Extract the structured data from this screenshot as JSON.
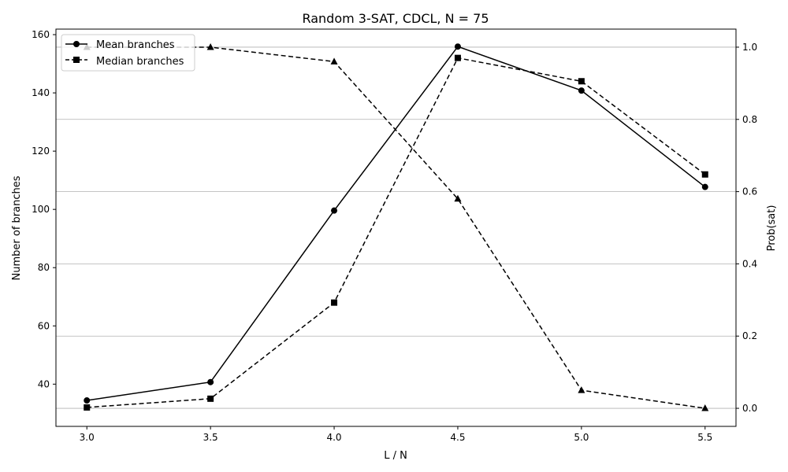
{
  "chart_data": {
    "type": "line",
    "title": "Random 3-SAT, CDCL, N = 75",
    "xlabel": "L / N",
    "ylabel_left": "Number of branches",
    "ylabel_right": "Prob(sat)",
    "x": [
      3.0,
      3.5,
      4.0,
      4.5,
      5.0,
      5.5
    ],
    "x_tick_labels": [
      "3.0",
      "3.5",
      "4.0",
      "4.5",
      "5.0",
      "5.5"
    ],
    "xlim": [
      2.875,
      5.625
    ],
    "ylim_left": [
      25.5,
      161.9
    ],
    "ylim_right": [
      -0.05,
      1.05
    ],
    "y_left_ticks": [
      40,
      60,
      80,
      100,
      120,
      140,
      160
    ],
    "y_right_ticks": [
      0.0,
      0.2,
      0.4,
      0.6,
      0.8,
      1.0
    ],
    "y_right_tick_labels": [
      "0.0",
      "0.2",
      "0.4",
      "0.6",
      "0.8",
      "1.0"
    ],
    "grid": "right-axis horizontal",
    "legend_location": "top-left",
    "series": [
      {
        "name": "Mean branches",
        "axis": "left",
        "marker": "circle",
        "linestyle": "solid",
        "color": "#000000",
        "values": [
          34.4,
          40.7,
          99.6,
          155.9,
          140.8,
          107.7
        ]
      },
      {
        "name": "Median branches",
        "axis": "left",
        "marker": "square",
        "linestyle": "dashed",
        "color": "#000000",
        "values": [
          32.0,
          35.0,
          68.0,
          152.0,
          144.0,
          112.0
        ]
      },
      {
        "name": "",
        "axis": "right",
        "marker": "triangle",
        "linestyle": "dashed",
        "color": "#000000",
        "values": [
          1.0,
          1.0,
          0.96,
          0.58,
          0.05,
          0.0
        ]
      }
    ]
  }
}
